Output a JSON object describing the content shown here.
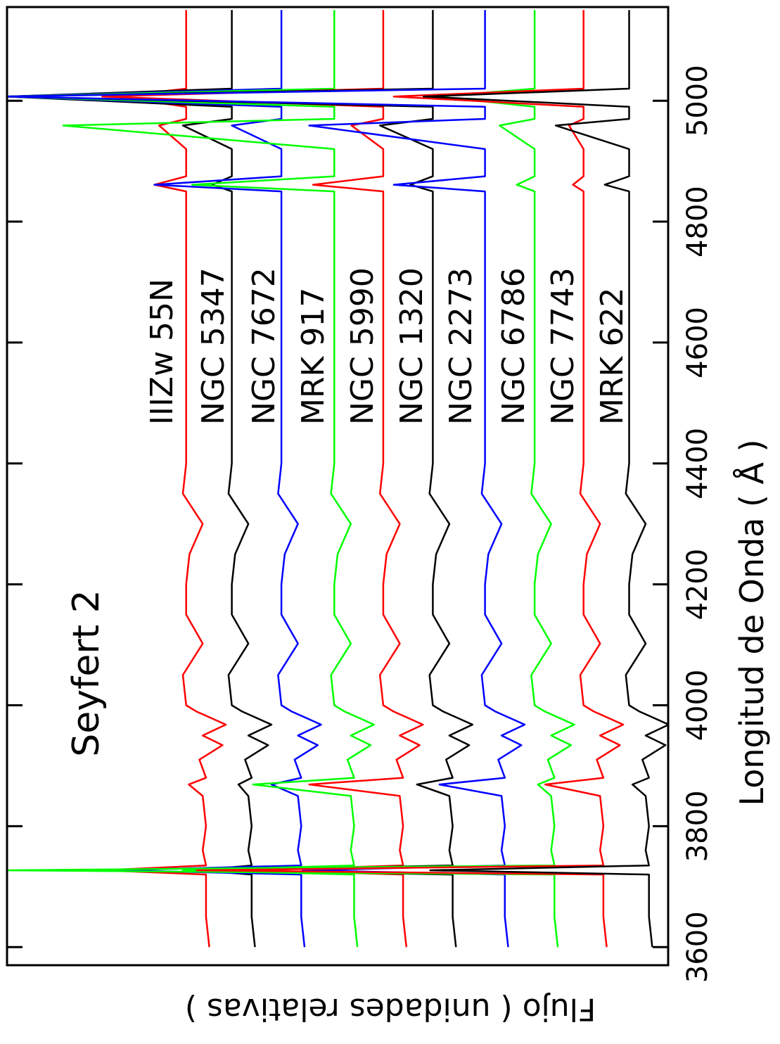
{
  "chart_data": {
    "type": "line",
    "title": "Seyfert 2",
    "x_label": "Longitud de Onda ( Å )",
    "y_label": "Flujo ( unidades relativas )",
    "xlim": [
      3570,
      5155
    ],
    "ylim": [
      0,
      10
    ],
    "xticks": [
      3600,
      3800,
      4000,
      4200,
      4400,
      4600,
      4800,
      5000
    ],
    "x": [
      3600,
      3650,
      3700,
      3720,
      3727,
      3735,
      3760,
      3800,
      3850,
      3869,
      3880,
      3910,
      3934,
      3950,
      3968,
      3990,
      4000,
      4050,
      4102,
      4150,
      4200,
      4250,
      4300,
      4350,
      4400,
      4500,
      4600,
      4700,
      4800,
      4850,
      4861,
      4875,
      4920,
      4959,
      4970,
      4990,
      5007,
      5020,
      5050,
      5100,
      5150
    ],
    "series": [
      {
        "name": "IIIZw 55N",
        "color": "#ff0000",
        "values": [
          6.94,
          6.99,
          6.99,
          6.99,
          8.56,
          6.99,
          7.04,
          6.99,
          7.04,
          7.25,
          6.99,
          7.09,
          6.74,
          7.04,
          6.69,
          7.14,
          7.29,
          7.34,
          7.04,
          7.29,
          7.29,
          7.24,
          7.04,
          7.34,
          7.29,
          7.29,
          7.29,
          7.29,
          7.29,
          7.29,
          7.77,
          7.29,
          7.29,
          7.7,
          7.29,
          7.29,
          8.35,
          7.29,
          7.29,
          7.29,
          7.29
        ]
      },
      {
        "name": "NGC 5347",
        "color": "#000000",
        "values": [
          6.25,
          6.3,
          6.3,
          6.3,
          7.13,
          6.3,
          6.35,
          6.3,
          6.35,
          6.5,
          6.3,
          6.4,
          6.05,
          6.35,
          6.0,
          6.45,
          6.6,
          6.65,
          6.35,
          6.6,
          6.6,
          6.55,
          6.35,
          6.65,
          6.6,
          6.6,
          6.6,
          6.6,
          6.6,
          6.6,
          6.9,
          6.6,
          6.6,
          7.34,
          6.6,
          6.6,
          10,
          6.6,
          6.6,
          6.6,
          6.6
        ]
      },
      {
        "name": "NGC 7672",
        "color": "#0000ff",
        "values": [
          5.5,
          5.55,
          5.55,
          5.55,
          8.35,
          5.55,
          5.6,
          5.55,
          5.6,
          6.0,
          5.55,
          5.65,
          5.3,
          5.6,
          5.25,
          5.7,
          5.85,
          5.9,
          5.6,
          5.85,
          5.85,
          5.8,
          5.6,
          5.9,
          5.85,
          5.85,
          5.85,
          5.85,
          5.85,
          5.85,
          7.77,
          5.85,
          5.85,
          6.6,
          5.85,
          5.85,
          10,
          5.85,
          5.85,
          5.85,
          5.85
        ]
      },
      {
        "name": "MRK 917",
        "color": "#00ff00",
        "values": [
          4.7,
          4.75,
          4.75,
          4.75,
          7.34,
          4.75,
          4.8,
          4.75,
          4.8,
          6.28,
          4.75,
          4.85,
          4.5,
          4.8,
          4.45,
          4.9,
          5.05,
          5.1,
          4.8,
          5.05,
          5.05,
          5.0,
          4.8,
          5.1,
          5.05,
          5.05,
          5.05,
          5.05,
          5.05,
          5.05,
          7.2,
          5.05,
          5.05,
          9.15,
          5.05,
          5.05,
          10,
          5.05,
          5.05,
          5.05,
          5.05
        ]
      },
      {
        "name": "NGC 5990",
        "color": "#ff0000",
        "values": [
          3.96,
          4.01,
          4.01,
          4.01,
          6.28,
          4.01,
          4.06,
          4.01,
          4.06,
          5.43,
          4.01,
          4.11,
          3.76,
          4.06,
          3.71,
          4.16,
          4.31,
          4.36,
          4.06,
          4.31,
          4.31,
          4.26,
          4.06,
          4.36,
          4.31,
          4.31,
          4.31,
          4.31,
          4.31,
          4.31,
          5.37,
          4.31,
          4.31,
          4.79,
          4.31,
          4.31,
          8.56,
          4.31,
          4.31,
          4.31,
          4.31
        ]
      },
      {
        "name": "NGC 1320",
        "color": "#000000",
        "values": [
          3.21,
          3.26,
          3.26,
          3.26,
          6.9,
          3.26,
          3.31,
          3.26,
          3.31,
          3.8,
          3.26,
          3.36,
          3.01,
          3.31,
          2.96,
          3.41,
          3.56,
          3.61,
          3.31,
          3.56,
          3.56,
          3.51,
          3.31,
          3.61,
          3.56,
          3.56,
          3.56,
          3.56,
          3.56,
          3.56,
          3.9,
          3.56,
          3.56,
          4.36,
          3.56,
          3.56,
          10,
          3.56,
          3.56,
          3.56,
          3.56
        ]
      },
      {
        "name": "NGC 2273",
        "color": "#0000ff",
        "values": [
          2.42,
          2.47,
          2.47,
          2.47,
          5.53,
          2.47,
          2.52,
          2.47,
          2.52,
          3.46,
          2.47,
          2.57,
          2.22,
          2.52,
          2.17,
          2.62,
          2.77,
          2.82,
          2.52,
          2.77,
          2.77,
          2.72,
          2.52,
          2.82,
          2.77,
          2.77,
          2.77,
          2.77,
          2.77,
          2.77,
          4.15,
          2.77,
          2.77,
          5.43,
          2.77,
          2.77,
          10,
          2.77,
          2.77,
          2.77,
          2.77
        ]
      },
      {
        "name": "NGC 6786",
        "color": "#00ff00",
        "values": [
          1.67,
          1.72,
          1.72,
          1.72,
          10,
          1.72,
          1.77,
          1.72,
          1.77,
          1.97,
          1.72,
          1.82,
          1.47,
          1.77,
          1.42,
          1.87,
          2.02,
          2.07,
          1.77,
          2.02,
          2.02,
          1.97,
          1.77,
          2.07,
          2.02,
          2.02,
          2.02,
          2.02,
          2.02,
          2.02,
          2.29,
          2.02,
          2.02,
          2.55,
          2.02,
          2.02,
          3.5,
          2.02,
          2.02,
          2.02,
          2.02
        ]
      },
      {
        "name": "NGC 7743",
        "color": "#ff0000",
        "values": [
          0.93,
          0.98,
          0.98,
          0.98,
          7.13,
          0.98,
          1.03,
          0.98,
          1.03,
          1.86,
          0.98,
          1.08,
          0.73,
          1.03,
          0.68,
          1.13,
          1.28,
          1.33,
          1.03,
          1.28,
          1.28,
          1.23,
          1.03,
          1.33,
          1.28,
          1.28,
          1.28,
          1.28,
          1.28,
          1.28,
          1.44,
          1.28,
          1.28,
          1.5,
          1.28,
          1.28,
          4.15,
          1.28,
          1.28,
          1.28,
          1.28
        ]
      },
      {
        "name": "MRK 622",
        "color": "#000000",
        "values": [
          0.24,
          0.29,
          0.29,
          0.29,
          3.6,
          0.29,
          0.34,
          0.29,
          0.34,
          0.54,
          0.29,
          0.39,
          0.04,
          0.34,
          -0.01,
          0.44,
          0.59,
          0.64,
          0.34,
          0.59,
          0.59,
          0.54,
          0.34,
          0.64,
          0.59,
          0.59,
          0.59,
          0.59,
          0.59,
          0.59,
          0.96,
          0.59,
          0.59,
          1.7,
          0.59,
          0.59,
          3.7,
          0.59,
          0.59,
          0.59,
          0.59
        ]
      }
    ]
  }
}
